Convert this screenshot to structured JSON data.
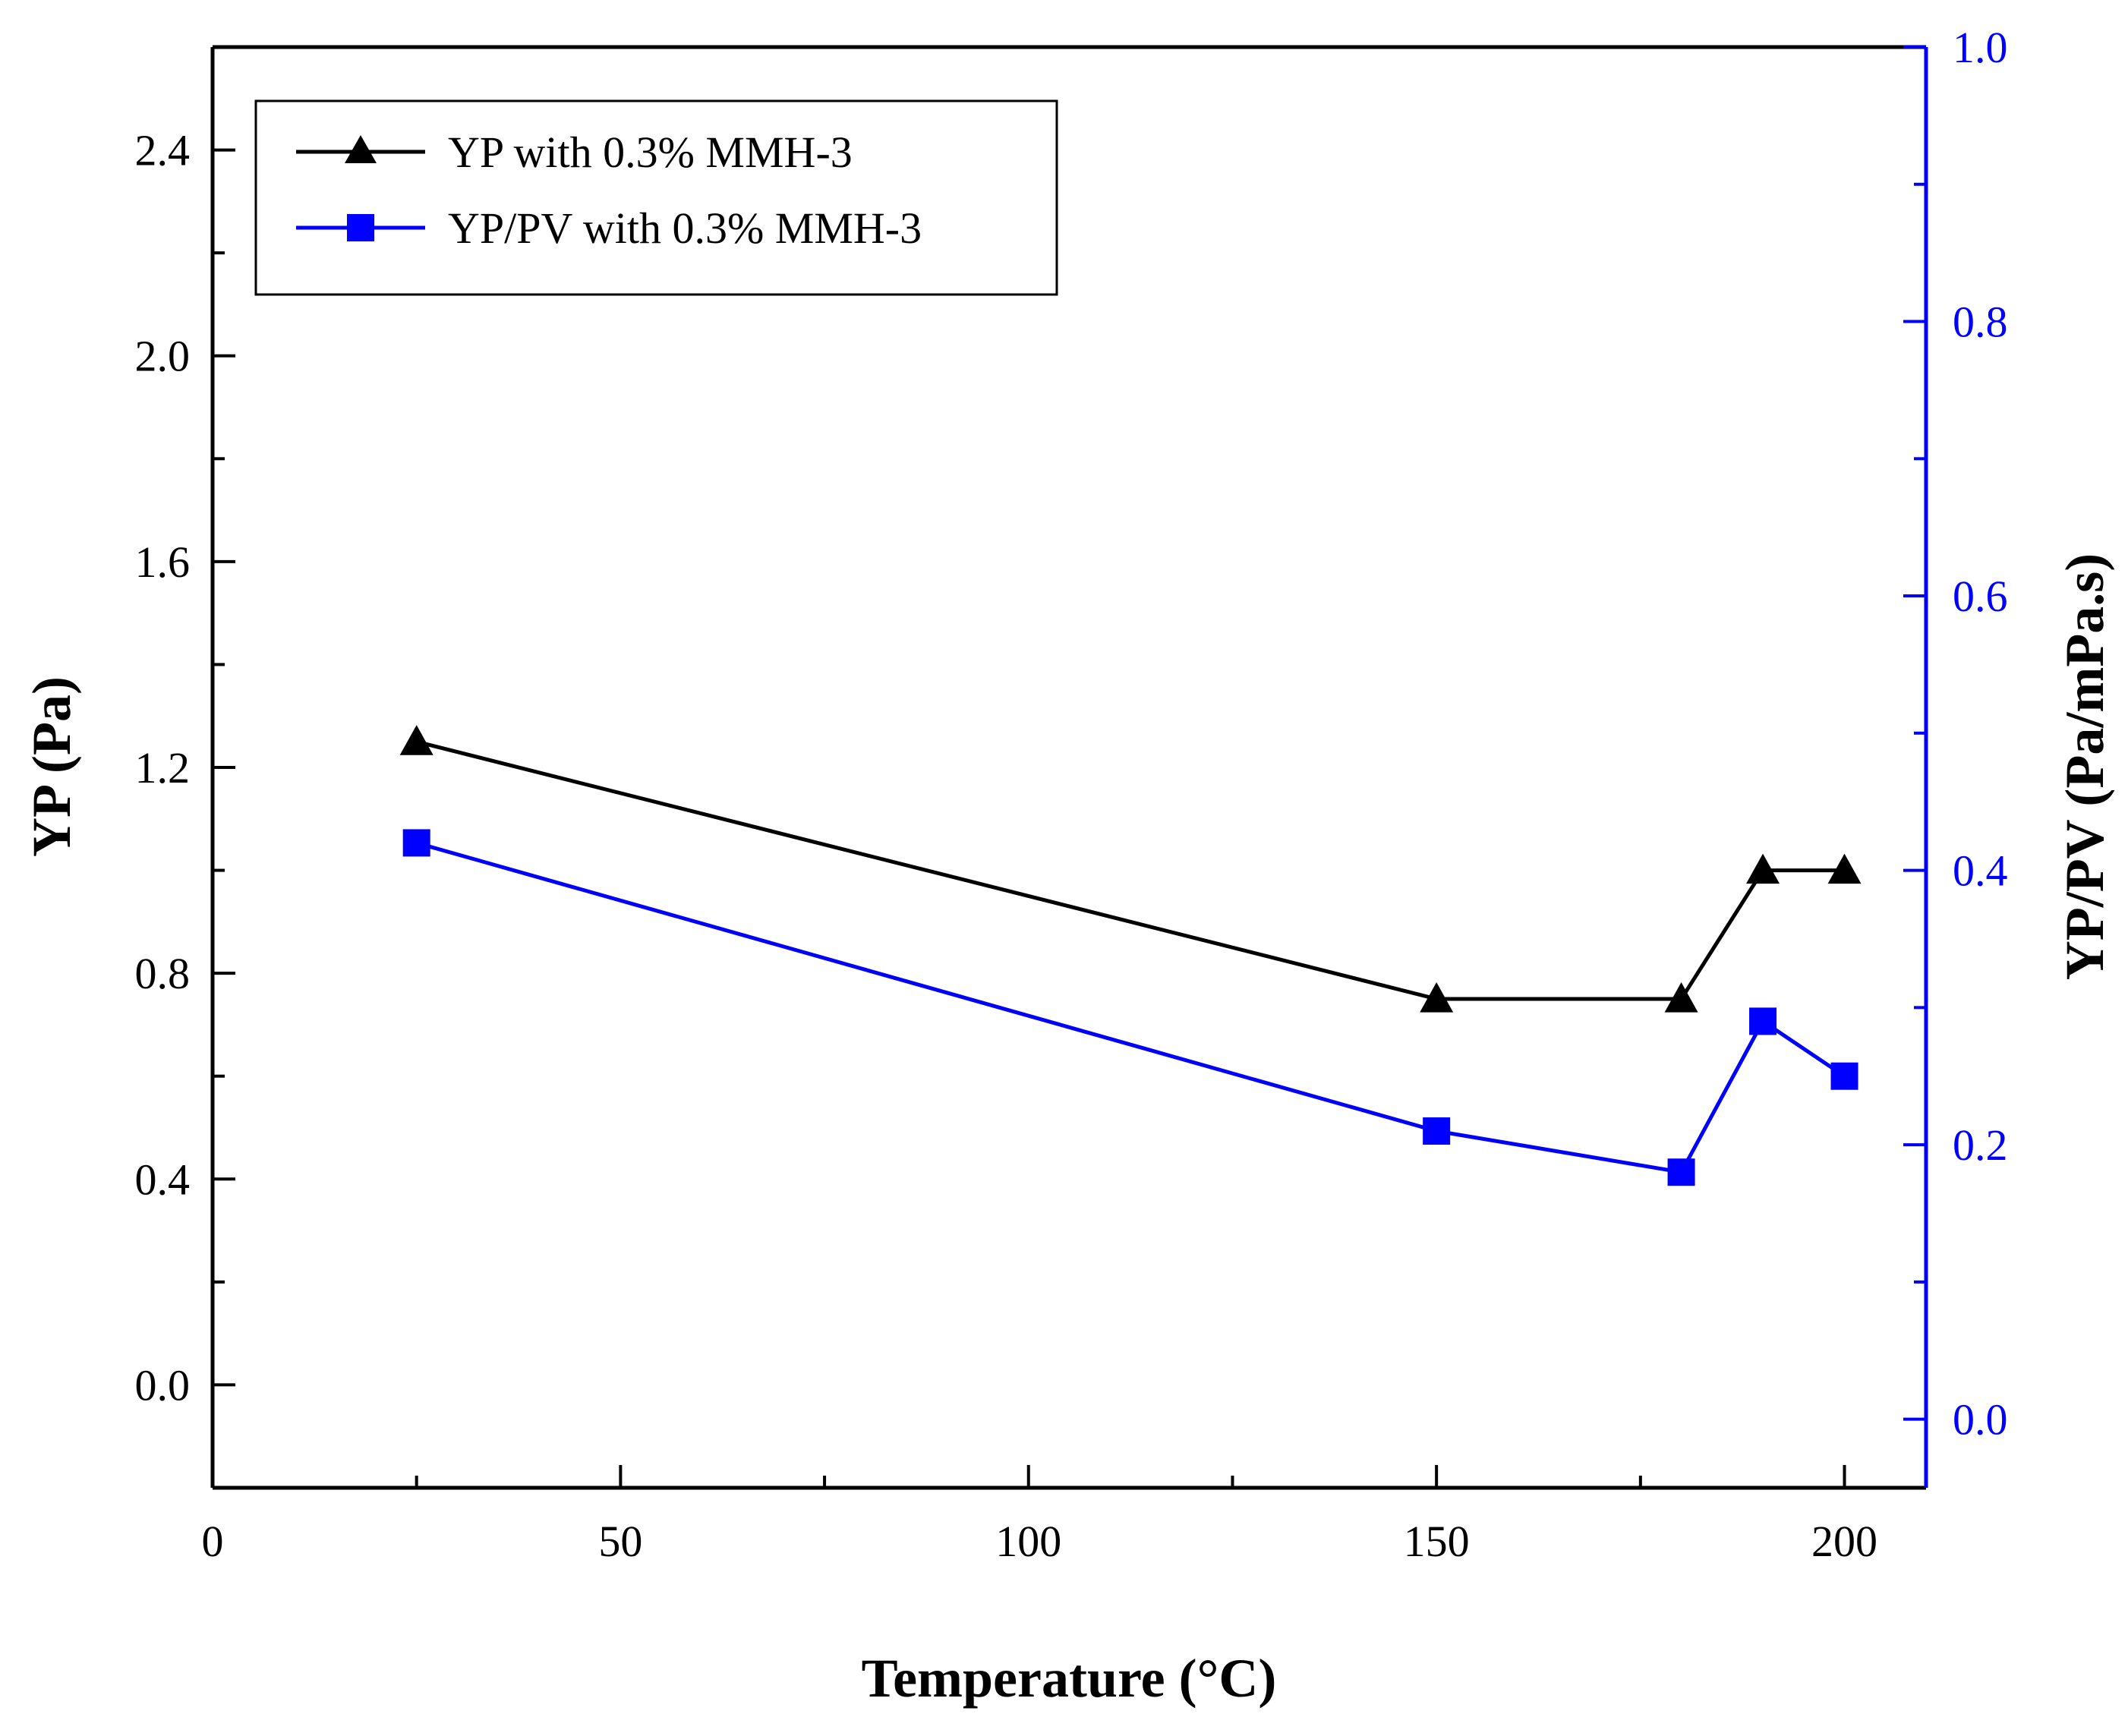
{
  "chart_data": {
    "type": "line",
    "title": "",
    "xlabel": "Temperature (°C)",
    "ylabel": "YP (Pa)",
    "y2label": "YP/PV (Pa/mPa.s)",
    "xlim": [
      0,
      210
    ],
    "ylim": [
      -0.2,
      2.6
    ],
    "y2lim": [
      -0.05,
      1.0
    ],
    "xticks": [
      0,
      50,
      100,
      150,
      200
    ],
    "xtick_labels": [
      "0",
      "50",
      "100",
      "150",
      "200"
    ],
    "yticks": [
      0.0,
      0.4,
      0.8,
      1.2,
      1.6,
      2.0,
      2.4
    ],
    "ytick_labels": [
      "0.0",
      "0.4",
      "0.8",
      "1.2",
      "1.6",
      "2.0",
      "2.4"
    ],
    "y2ticks": [
      0.0,
      0.2,
      0.4,
      0.6,
      0.8,
      1.0
    ],
    "y2tick_labels": [
      "0.0",
      "0.2",
      "0.4",
      "0.6",
      "0.8",
      "1.0"
    ],
    "grid": false,
    "legend_position": "top-left",
    "series": [
      {
        "name": "YP with 0.3%  MMH-3",
        "axis": "left",
        "marker": "triangle",
        "color": "#000000",
        "x": [
          25,
          150,
          180,
          190,
          200
        ],
        "values": [
          1.25,
          0.75,
          0.75,
          1.0,
          1.0
        ]
      },
      {
        "name": "YP/PV with 0.3%  MMH-3",
        "axis": "right",
        "marker": "square",
        "color": "#0000ff",
        "x": [
          25,
          150,
          180,
          190,
          200
        ],
        "values": [
          0.42,
          0.21,
          0.18,
          0.29,
          0.25
        ]
      }
    ]
  }
}
